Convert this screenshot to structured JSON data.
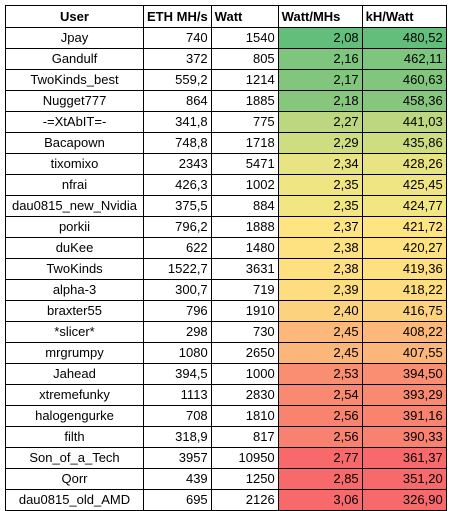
{
  "headers": {
    "user": "User",
    "eth": "ETH MH/s",
    "watt": "Watt",
    "watt_per_mhs": "Watt/MHs",
    "kh_per_watt": "kH/Watt"
  },
  "rows": [
    {
      "user": "Jpay",
      "eth": "740",
      "watt": "1540",
      "wpm": "2,08",
      "khw": "480,52",
      "wpm_color": "#63be7b",
      "khw_color": "#63be7b"
    },
    {
      "user": "Gandulf",
      "eth": "372",
      "watt": "805",
      "wpm": "2,16",
      "khw": "462,11",
      "wpm_color": "#7ec57d",
      "khw_color": "#7ec57d"
    },
    {
      "user": "TwoKinds_best",
      "eth": "559,2",
      "watt": "1214",
      "wpm": "2,17",
      "khw": "460,63",
      "wpm_color": "#82c67d",
      "khw_color": "#82c67d"
    },
    {
      "user": "Nugget777",
      "eth": "864",
      "watt": "1885",
      "wpm": "2,18",
      "khw": "458,36",
      "wpm_color": "#86c77d",
      "khw_color": "#86c77d"
    },
    {
      "user": "-=XtAbIT=-",
      "eth": "341,8",
      "watt": "775",
      "wpm": "2,27",
      "khw": "441,03",
      "wpm_color": "#bcd780",
      "khw_color": "#bcd780"
    },
    {
      "user": "Bacapown",
      "eth": "748,8",
      "watt": "1718",
      "wpm": "2,29",
      "khw": "435,86",
      "wpm_color": "#cfdd81",
      "khw_color": "#cfdd81"
    },
    {
      "user": "tixomixo",
      "eth": "2343",
      "watt": "5471",
      "wpm": "2,34",
      "khw": "428,26",
      "wpm_color": "#e8e383",
      "khw_color": "#e8e383"
    },
    {
      "user": "nfrai",
      "eth": "426,3",
      "watt": "1002",
      "wpm": "2,35",
      "khw": "425,45",
      "wpm_color": "#f0e583",
      "khw_color": "#f0e583"
    },
    {
      "user": "dau0815_new_Nvidia",
      "eth": "375,5",
      "watt": "884",
      "wpm": "2,35",
      "khw": "424,77",
      "wpm_color": "#f2e683",
      "khw_color": "#f2e683"
    },
    {
      "user": "porkii",
      "eth": "796,2",
      "watt": "1888",
      "wpm": "2,37",
      "khw": "421,72",
      "wpm_color": "#fee582",
      "khw_color": "#fee582"
    },
    {
      "user": "duKee",
      "eth": "622",
      "watt": "1480",
      "wpm": "2,38",
      "khw": "420,27",
      "wpm_color": "#fee282",
      "khw_color": "#fee282"
    },
    {
      "user": "TwoKinds",
      "eth": "1522,7",
      "watt": "3631",
      "wpm": "2,38",
      "khw": "419,36",
      "wpm_color": "#fee081",
      "khw_color": "#fee081"
    },
    {
      "user": "alpha-3",
      "eth": "300,7",
      "watt": "719",
      "wpm": "2,39",
      "khw": "418,22",
      "wpm_color": "#fedd81",
      "khw_color": "#fedd81"
    },
    {
      "user": "braxter55",
      "eth": "796",
      "watt": "1910",
      "wpm": "2,40",
      "khw": "416,75",
      "wpm_color": "#fdd27f",
      "khw_color": "#fdd27f"
    },
    {
      "user": "*slicer*",
      "eth": "298",
      "watt": "730",
      "wpm": "2,45",
      "khw": "408,22",
      "wpm_color": "#fbb87a",
      "khw_color": "#fbb87a"
    },
    {
      "user": "mrgrumpy",
      "eth": "1080",
      "watt": "2650",
      "wpm": "2,45",
      "khw": "407,55",
      "wpm_color": "#fbb67a",
      "khw_color": "#fbb67a"
    },
    {
      "user": "Jahead",
      "eth": "394,5",
      "watt": "1000",
      "wpm": "2,53",
      "khw": "394,50",
      "wpm_color": "#f98e72",
      "khw_color": "#f98e72"
    },
    {
      "user": "xtremefunky",
      "eth": "1113",
      "watt": "2830",
      "wpm": "2,54",
      "khw": "393,29",
      "wpm_color": "#f98a71",
      "khw_color": "#f98a71"
    },
    {
      "user": "halogengurke",
      "eth": "708",
      "watt": "1810",
      "wpm": "2,56",
      "khw": "391,16",
      "wpm_color": "#f88470",
      "khw_color": "#f88470"
    },
    {
      "user": "filth",
      "eth": "318,9",
      "watt": "817",
      "wpm": "2,56",
      "khw": "390,33",
      "wpm_color": "#f88170",
      "khw_color": "#f88170"
    },
    {
      "user": "Son_of_a_Tech",
      "eth": "3957",
      "watt": "10950",
      "wpm": "2,77",
      "khw": "361,37",
      "wpm_color": "#f8696b",
      "khw_color": "#f8696b"
    },
    {
      "user": "Qorr",
      "eth": "439",
      "watt": "1250",
      "wpm": "2,85",
      "khw": "351,20",
      "wpm_color": "#f8696b",
      "khw_color": "#f8696b"
    },
    {
      "user": "dau0815_old_AMD",
      "eth": "695",
      "watt": "2126",
      "wpm": "3,06",
      "khw": "326,90",
      "wpm_color": "#f8696b",
      "khw_color": "#f8696b"
    }
  ]
}
